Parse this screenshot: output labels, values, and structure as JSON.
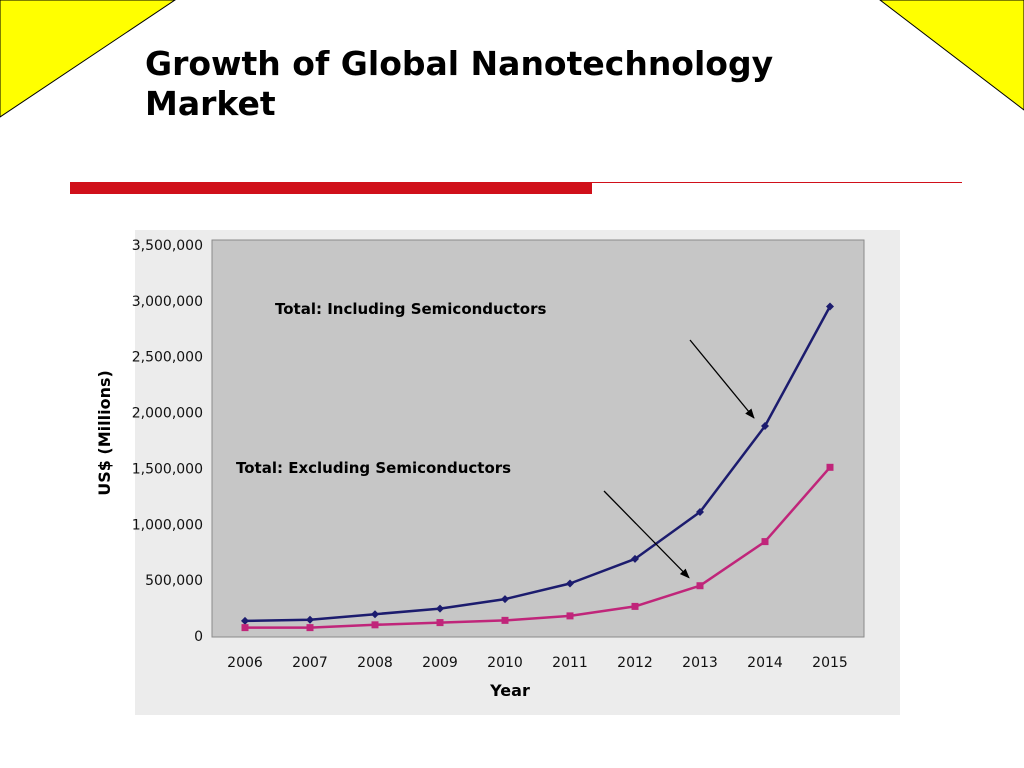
{
  "slide": {
    "title": "Growth of Global Nanotechnology Market",
    "accent_color": "#d0101a",
    "corner_fill": "#ffff00"
  },
  "chart_data": {
    "type": "line",
    "title": "",
    "xlabel": "Year",
    "ylabel": "US$ (Millions)",
    "categories": [
      "2006",
      "2007",
      "2008",
      "2009",
      "2010",
      "2011",
      "2012",
      "2013",
      "2014",
      "2015"
    ],
    "ylim": [
      0,
      3500000
    ],
    "yticks": [
      0,
      500000,
      1000000,
      1500000,
      2000000,
      2500000,
      3000000,
      3500000
    ],
    "ytick_labels": [
      "0",
      "500,000",
      "1,000,000",
      "1,500,000",
      "2,000,000",
      "2,500,000",
      "3,000,000",
      "3,500,000"
    ],
    "grid": false,
    "plot_background": "#c6c6c6",
    "series": [
      {
        "name": "Total: Including Semiconductors",
        "color": "#1c1c6e",
        "values": [
          135000,
          145000,
          195000,
          245000,
          330000,
          470000,
          690000,
          1110000,
          1880000,
          2950000
        ]
      },
      {
        "name": "Total: Excluding Semiconductors",
        "color": "#c0257a",
        "values": [
          75000,
          75000,
          100000,
          120000,
          140000,
          180000,
          265000,
          450000,
          845000,
          1510000
        ]
      }
    ],
    "annotations": [
      {
        "text": "Total: Including Semiconductors",
        "target_series": 0,
        "target_index": 8
      },
      {
        "text": "Total: Excluding Semiconductors",
        "target_series": 1,
        "target_index": 7
      }
    ]
  }
}
